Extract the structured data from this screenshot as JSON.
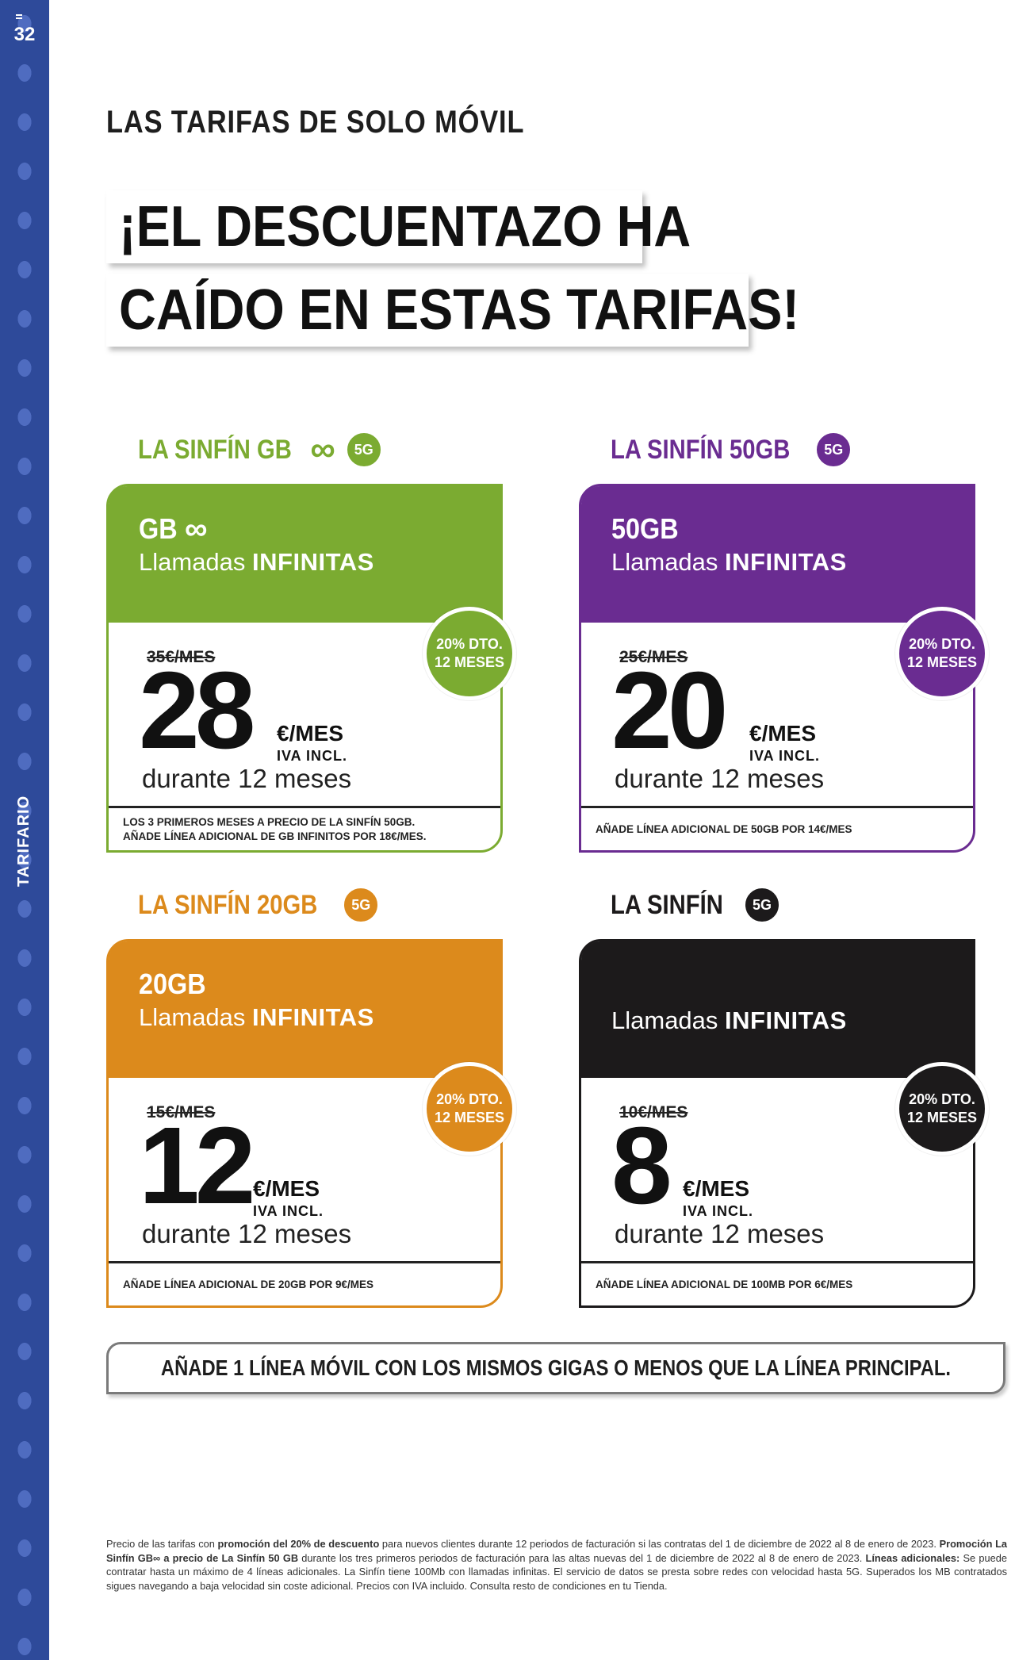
{
  "page": {
    "number": "32",
    "side_label": "TARIFARIO"
  },
  "section_title": "LAS TARIFAS DE SOLO MÓVIL",
  "headline": {
    "line1": "¡EL DESCUENTAZO HA",
    "line2": "CAÍDO EN ESTAS TARIFAS!"
  },
  "colors": {
    "sidebar": "#2e4a9a",
    "green": "#7bab31",
    "purple": "#6a2c91",
    "orange": "#dc8a1c",
    "black": "#1c1a1b"
  },
  "plans": [
    {
      "name": "LA SINFÍN GB",
      "name_icon": "infinity-icon",
      "badge": "5G",
      "gb": "GB",
      "gb_icon": "infinity-icon",
      "calls_prefix": "Llamadas",
      "calls_strong": "INFINITAS",
      "old_price": "35€/MES",
      "price": "28",
      "unit": "€/MES",
      "iva": "IVA INCL.",
      "duration": "durante 12 meses",
      "discount_line1": "20% DTO.",
      "discount_line2": "12 MESES",
      "footer_line1": "LOS 3 PRIMEROS MESES A PRECIO DE LA SINFÍN 50GB.",
      "footer_line2": "AÑADE LÍNEA ADICIONAL DE GB INFINITOS POR 18€/MES."
    },
    {
      "name": "LA SINFÍN 50GB",
      "badge": "5G",
      "gb": "50GB",
      "calls_prefix": "Llamadas",
      "calls_strong": "INFINITAS",
      "old_price": "25€/MES",
      "price": "20",
      "unit": "€/MES",
      "iva": "IVA INCL.",
      "duration": "durante 12 meses",
      "discount_line1": "20% DTO.",
      "discount_line2": "12 MESES",
      "footer_line1": "AÑADE LÍNEA ADICIONAL DE 50GB POR 14€/MES"
    },
    {
      "name": "LA SINFÍN 20GB",
      "badge": "5G",
      "gb": "20GB",
      "calls_prefix": "Llamadas",
      "calls_strong": "INFINITAS",
      "old_price": "15€/MES",
      "price": "12",
      "unit": "€/MES",
      "iva": "IVA INCL.",
      "duration": "durante 12 meses",
      "discount_line1": "20% DTO.",
      "discount_line2": "12 MESES",
      "footer_line1": "AÑADE LÍNEA ADICIONAL DE 20GB POR 9€/MES"
    },
    {
      "name": "LA SINFÍN",
      "badge": "5G",
      "calls_prefix": "Llamadas",
      "calls_strong": "INFINITAS",
      "old_price": "10€/MES",
      "price": "8",
      "unit": "€/MES",
      "iva": "IVA INCL.",
      "duration": "durante 12 meses",
      "discount_line1": "20% DTO.",
      "discount_line2": "12 MESES",
      "footer_line1": "AÑADE LÍNEA ADICIONAL DE 100MB POR 6€/MES"
    }
  ],
  "add_line_note": "AÑADE 1 LÍNEA MÓVIL CON LOS MISMOS GIGAS O MENOS QUE LA LÍNEA PRINCIPAL.",
  "legal": {
    "t1": "Precio de las tarifas con ",
    "b1": "promoción del 20% de descuento",
    "t2": " para nuevos clientes durante 12 periodos de facturación si las contratas del 1 de diciembre de 2022 al 8 de enero de 2023. ",
    "b2": "Promoción La Sinfín GB∞ a precio de La Sinfín 50 GB",
    "t3": " durante los tres primeros periodos de facturación para las altas nuevas del 1 de diciembre de 2022 al 8 de enero de 2023. ",
    "b3": "Líneas adicionales:",
    "t4": " Se puede contratar hasta un máximo de 4 líneas adicionales. La Sinfín tiene 100Mb con llamadas infinitas. El servicio de datos se presta sobre redes con velocidad hasta 5G. Superados los MB contratados sigues navegando a baja velocidad sin coste adicional. Precios con IVA incluido. Consulta resto de condiciones en tu Tienda."
  }
}
